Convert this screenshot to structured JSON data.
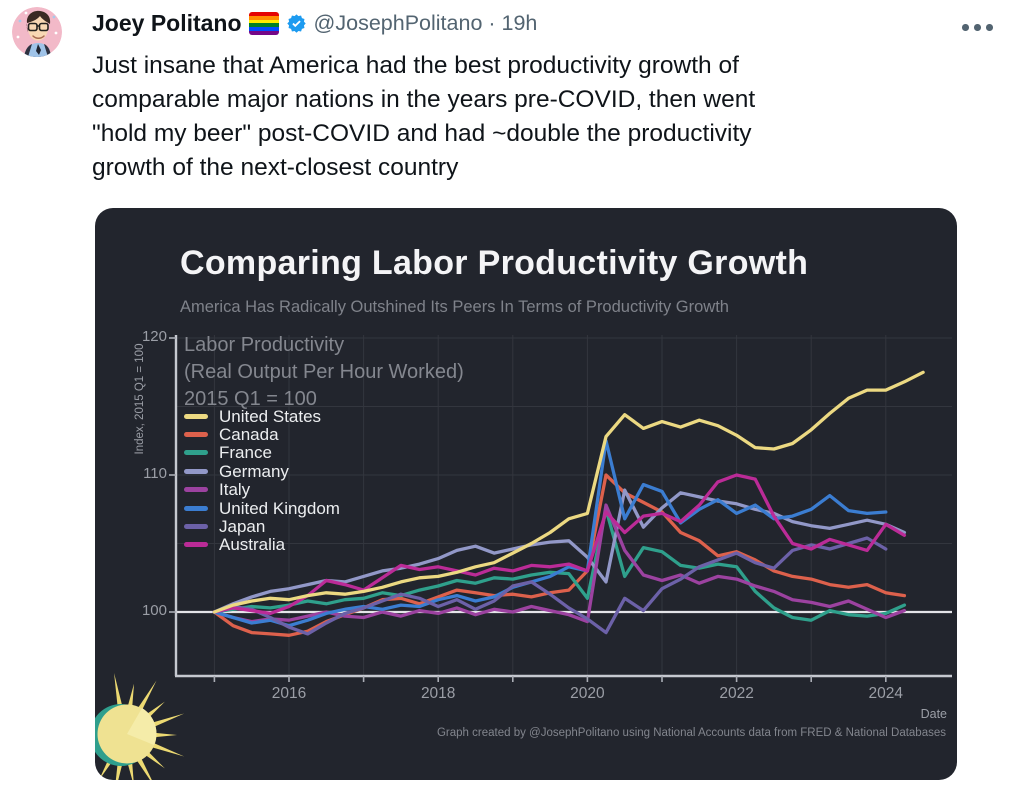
{
  "tweet": {
    "author": "Joey Politano",
    "handle_time": "@JosephPolitano · 19h",
    "body_lines": [
      "Just insane that America had the best productivity growth of",
      "comparable major nations in the years pre-COVID, then went",
      "\"hold my beer\" post-COVID and had ~double the productivity",
      "growth of the next-closest country"
    ],
    "icons": {
      "pride_flag_colors": [
        "#e40303",
        "#ff8c00",
        "#ffed00",
        "#008026",
        "#004dff",
        "#750787"
      ],
      "verified_badge_color": "#1d9bf0",
      "more_icon": "ellipsis"
    }
  },
  "card": {
    "background": "#22252d"
  },
  "chart_data": {
    "type": "line",
    "title": "Comparing Labor Productivity Growth",
    "subtitle": "America Has Radically Outshined Its Peers In Terms of Productivity Growth",
    "annotation": [
      "Labor Productivity",
      "(Real Output Per Hour Worked)",
      "2015 Q1 = 100"
    ],
    "ylabel": "Index, 2015 Q1 = 100",
    "xlabel": "Date",
    "footer": "Graph created by @JosephPolitano using National Accounts data from FRED & National Databases",
    "x_start": 2015.0,
    "x_step": 0.25,
    "xlim": [
      2014.5,
      2024.9
    ],
    "ylim": [
      95.3,
      120.3
    ],
    "xticks": [
      2016,
      2018,
      2020,
      2022,
      2024
    ],
    "yticks": [
      100,
      110,
      120
    ],
    "grid_years": [
      2015,
      2016,
      2017,
      2018,
      2019,
      2020,
      2021,
      2022,
      2023,
      2024
    ],
    "grid_values": [
      100,
      105,
      110,
      115,
      120
    ],
    "legend_position": "upper-left",
    "grid": true,
    "series": [
      {
        "name": "United States",
        "color": "#ecd982",
        "values": [
          100,
          100.5,
          100.8,
          101.0,
          100.9,
          101.2,
          101.4,
          101.3,
          101.5,
          101.8,
          102.2,
          102.5,
          102.6,
          102.9,
          103.3,
          103.6,
          104.3,
          105.0,
          105.8,
          106.8,
          107.2,
          112.8,
          114.4,
          113.4,
          113.9,
          113.5,
          114.0,
          113.6,
          112.9,
          112.0,
          111.9,
          112.3,
          113.3,
          114.5,
          115.6,
          116.2,
          116.2,
          116.8,
          117.5
        ]
      },
      {
        "name": "Canada",
        "color": "#dd614c",
        "values": [
          100,
          99.0,
          98.5,
          98.4,
          98.3,
          98.6,
          99.3,
          99.8,
          100.3,
          100.9,
          101.0,
          100.6,
          101.1,
          101.6,
          101.4,
          101.2,
          101.3,
          101.1,
          101.4,
          101.6,
          103.0,
          110.0,
          108.7,
          108.0,
          107.3,
          105.8,
          105.2,
          104.1,
          104.4,
          103.8,
          103.0,
          102.6,
          102.4,
          102.0,
          101.8,
          102.0,
          101.4,
          101.2
        ]
      },
      {
        "name": "France",
        "color": "#2fa08c",
        "values": [
          100,
          100.2,
          100.4,
          100.3,
          100.5,
          100.8,
          100.6,
          100.9,
          101.0,
          101.4,
          101.2,
          101.6,
          101.9,
          102.3,
          102.1,
          102.5,
          102.4,
          102.7,
          102.9,
          102.8,
          101.0,
          107.5,
          102.6,
          104.7,
          104.4,
          103.4,
          103.2,
          103.5,
          103.3,
          101.5,
          100.3,
          99.6,
          99.4,
          100.1,
          99.8,
          99.7,
          99.9,
          100.5
        ]
      },
      {
        "name": "Germany",
        "color": "#9298c8",
        "values": [
          100,
          100.6,
          101.1,
          101.5,
          101.7,
          102.0,
          102.3,
          102.2,
          102.6,
          103.0,
          103.2,
          103.5,
          103.9,
          104.5,
          104.8,
          104.3,
          104.6,
          104.9,
          105.1,
          105.2,
          104.0,
          102.2,
          108.9,
          106.2,
          107.6,
          108.7,
          108.4,
          108.1,
          107.9,
          107.5,
          107.2,
          106.6,
          106.3,
          106.1,
          106.4,
          106.7,
          106.4,
          105.8
        ]
      },
      {
        "name": "Italy",
        "color": "#9c42a0",
        "values": [
          100,
          99.6,
          99.3,
          99.5,
          99.4,
          99.7,
          100.0,
          99.7,
          99.6,
          100.0,
          99.7,
          100.1,
          99.9,
          100.3,
          99.8,
          100.2,
          100.0,
          100.4,
          100.1,
          99.8,
          99.3,
          107.8,
          104.5,
          102.7,
          102.3,
          102.7,
          102.1,
          102.6,
          102.4,
          101.9,
          101.5,
          100.9,
          100.7,
          100.4,
          100.8,
          100.2,
          99.6,
          100.1
        ]
      },
      {
        "name": "United Kingdom",
        "color": "#3b7dd1",
        "values": [
          100,
          99.6,
          99.2,
          99.4,
          99.0,
          99.4,
          99.9,
          100.2,
          100.4,
          100.2,
          100.5,
          100.4,
          100.9,
          101.2,
          100.8,
          101.1,
          101.8,
          102.2,
          102.6,
          103.3,
          103.0,
          112.5,
          106.8,
          109.3,
          108.8,
          106.5,
          107.5,
          108.2,
          107.2,
          107.8,
          106.8,
          107.0,
          107.5,
          108.5,
          107.4,
          107.2,
          107.3
        ]
      },
      {
        "name": "Japan",
        "color": "#6c61a8",
        "values": [
          100,
          100.4,
          100.2,
          99.6,
          98.9,
          98.4,
          99.2,
          99.9,
          100.3,
          100.8,
          101.3,
          101.0,
          100.4,
          100.9,
          100.2,
          100.8,
          101.9,
          102.2,
          101.3,
          100.3,
          99.5,
          98.5,
          101.0,
          100.1,
          101.7,
          102.4,
          103.3,
          103.8,
          104.3,
          103.6,
          103.2,
          104.5,
          104.9,
          104.6,
          105.0,
          105.4,
          104.6
        ]
      },
      {
        "name": "Australia",
        "color": "#bb2b97",
        "values": [
          100,
          100.3,
          100.1,
          99.9,
          100.4,
          101.2,
          102.3,
          102.0,
          101.6,
          102.5,
          103.4,
          103.1,
          103.3,
          103.0,
          102.7,
          103.2,
          103.0,
          103.4,
          103.3,
          103.5,
          103.0,
          107.3,
          105.8,
          107.0,
          107.2,
          106.6,
          107.8,
          109.5,
          110.0,
          109.7,
          107.0,
          105.0,
          104.6,
          105.3,
          104.9,
          104.5,
          106.4,
          105.6
        ]
      }
    ]
  }
}
